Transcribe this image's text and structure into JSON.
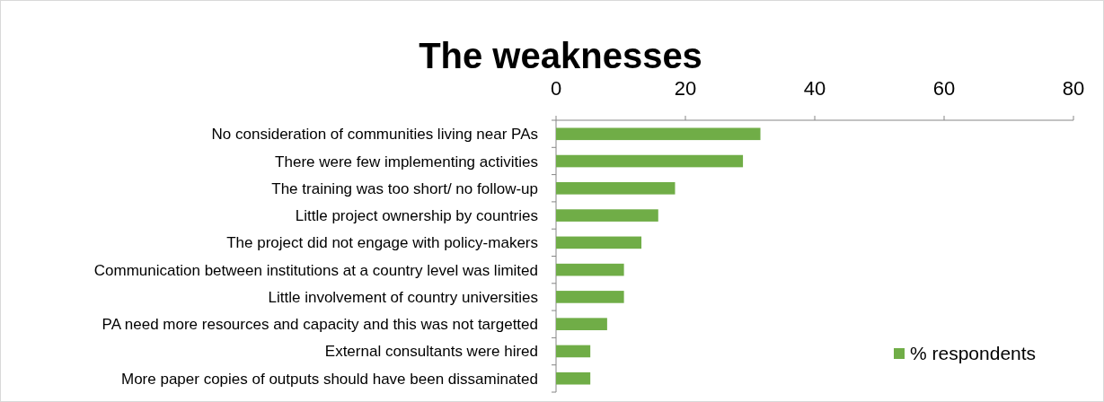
{
  "chart_data": {
    "type": "bar",
    "orientation": "horizontal",
    "title": "The weaknesses",
    "categories": [
      "No consideration of communities living near PAs",
      "There were few implementing activities",
      "The training was too short/ no follow-up",
      "Little project ownership by countries",
      "The project did not engage with policy-makers",
      "Communication between institutions at a country level was limited",
      "Little involvement of country universities",
      "PA need more resources and capacity and this was not targetted",
      "External consultants were hired",
      "More paper copies of outputs should have been dissaminated"
    ],
    "series": [
      {
        "name": "% respondents",
        "color": "#70ad47",
        "values": [
          31.6,
          28.9,
          18.4,
          15.8,
          13.2,
          10.5,
          10.5,
          7.9,
          5.3,
          5.3
        ]
      }
    ],
    "xlim": [
      0,
      80
    ],
    "xticks": [
      0,
      20,
      40,
      60,
      80
    ],
    "legend": "bottom right",
    "grid": false
  }
}
